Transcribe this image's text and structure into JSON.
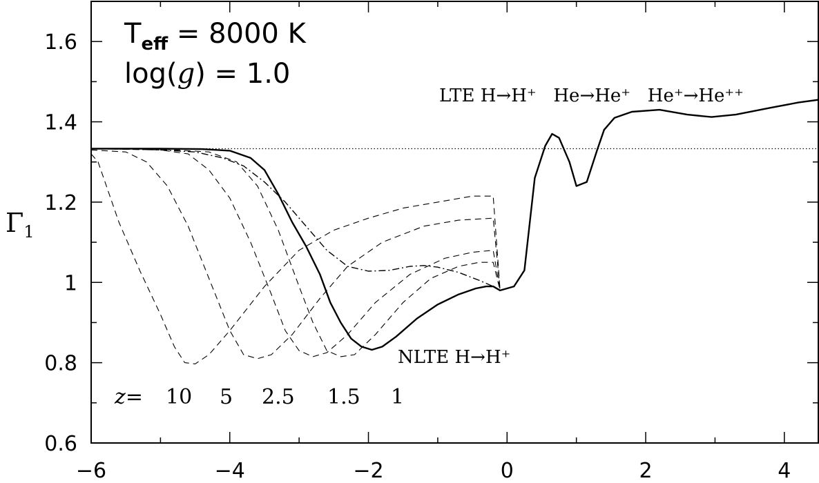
{
  "chart_data": {
    "type": "line",
    "title": "",
    "xlabel": "",
    "ylabel": "Γ",
    "ylabel_sub": "1",
    "xlim": [
      -6,
      4.5
    ],
    "ylim": [
      0.6,
      1.7
    ],
    "x_ticks": [
      -6,
      -4,
      -2,
      0,
      2,
      4
    ],
    "x_tick_labels": [
      "−6",
      "−4",
      "−2",
      "0",
      "2",
      "4"
    ],
    "y_ticks": [
      0.6,
      0.8,
      1.0,
      1.2,
      1.4,
      1.6
    ],
    "y_tick_labels": [
      "0.6",
      "0.8",
      "1",
      "1.2",
      "1.4",
      "1.6"
    ],
    "grid": false,
    "annotations": {
      "teff_label": "T",
      "teff_sub": "eff",
      "teff_value": " = 8000 K",
      "logg_label": "log(",
      "logg_g": "g",
      "logg_value": ") = 1.0",
      "lte_label": "LTE H→H⁺   He→He⁺   He⁺→He⁺⁺",
      "nlte_label": "NLTE H→H⁺",
      "z_label": "z",
      "z_eq": "=",
      "z_values": [
        "10",
        "5",
        "2.5",
        "1.5",
        "1"
      ]
    },
    "reference_line": {
      "y": 1.333,
      "style": "dotted"
    },
    "series": [
      {
        "style": "solid",
        "points": [
          [
            -6,
            1.333
          ],
          [
            -5,
            1.333
          ],
          [
            -4.4,
            1.332
          ],
          [
            -4.0,
            1.328
          ],
          [
            -3.7,
            1.31
          ],
          [
            -3.5,
            1.28
          ],
          [
            -3.3,
            1.22
          ],
          [
            -3.1,
            1.15
          ],
          [
            -2.9,
            1.09
          ],
          [
            -2.7,
            1.02
          ],
          [
            -2.55,
            0.95
          ],
          [
            -2.4,
            0.9
          ],
          [
            -2.25,
            0.86
          ],
          [
            -2.1,
            0.84
          ],
          [
            -1.95,
            0.832
          ],
          [
            -1.8,
            0.84
          ],
          [
            -1.6,
            0.865
          ],
          [
            -1.3,
            0.91
          ],
          [
            -1.0,
            0.945
          ],
          [
            -0.7,
            0.97
          ],
          [
            -0.45,
            0.985
          ],
          [
            -0.3,
            0.99
          ],
          [
            -0.2,
            0.99
          ],
          [
            -0.1,
            0.98
          ],
          [
            0.1,
            0.99
          ],
          [
            0.25,
            1.03
          ],
          [
            0.4,
            1.26
          ],
          [
            0.55,
            1.34
          ],
          [
            0.65,
            1.37
          ],
          [
            0.75,
            1.36
          ],
          [
            0.9,
            1.3
          ],
          [
            1.0,
            1.24
          ],
          [
            1.15,
            1.25
          ],
          [
            1.3,
            1.33
          ],
          [
            1.4,
            1.38
          ],
          [
            1.55,
            1.41
          ],
          [
            1.8,
            1.425
          ],
          [
            2.2,
            1.43
          ],
          [
            2.6,
            1.418
          ],
          [
            2.95,
            1.412
          ],
          [
            3.3,
            1.418
          ],
          [
            3.8,
            1.435
          ],
          [
            4.2,
            1.448
          ],
          [
            4.5,
            1.455
          ]
        ]
      },
      {
        "style": "dashdot",
        "points": [
          [
            -6,
            1.333
          ],
          [
            -5.5,
            1.332
          ],
          [
            -5,
            1.33
          ],
          [
            -4.5,
            1.325
          ],
          [
            -4.1,
            1.31
          ],
          [
            -3.8,
            1.29
          ],
          [
            -3.5,
            1.25
          ],
          [
            -3.2,
            1.2
          ],
          [
            -2.9,
            1.14
          ],
          [
            -2.6,
            1.08
          ],
          [
            -2.3,
            1.04
          ],
          [
            -2.0,
            1.028
          ],
          [
            -1.7,
            1.03
          ],
          [
            -1.4,
            1.04
          ],
          [
            -1.2,
            1.042
          ],
          [
            -1.0,
            1.038
          ],
          [
            -0.7,
            1.025
          ],
          [
            -0.4,
            1.005
          ],
          [
            -0.2,
            0.99
          ],
          [
            -0.1,
            0.98
          ]
        ]
      },
      {
        "style": "dashed",
        "z": "10",
        "points": [
          [
            -6,
            1.32
          ],
          [
            -5.9,
            1.3
          ],
          [
            -5.8,
            1.25
          ],
          [
            -5.6,
            1.15
          ],
          [
            -5.3,
            1.03
          ],
          [
            -5.0,
            0.92
          ],
          [
            -4.8,
            0.84
          ],
          [
            -4.65,
            0.8
          ],
          [
            -4.5,
            0.797
          ],
          [
            -4.3,
            0.82
          ],
          [
            -4.0,
            0.88
          ],
          [
            -3.5,
            0.99
          ],
          [
            -3.0,
            1.08
          ],
          [
            -2.5,
            1.13
          ],
          [
            -2.0,
            1.16
          ],
          [
            -1.5,
            1.185
          ],
          [
            -1.0,
            1.2
          ],
          [
            -0.5,
            1.215
          ],
          [
            -0.2,
            1.215
          ],
          [
            -0.1,
            0.98
          ]
        ]
      },
      {
        "style": "dashed",
        "z": "5",
        "points": [
          [
            -6,
            1.33
          ],
          [
            -5.5,
            1.325
          ],
          [
            -5.2,
            1.3
          ],
          [
            -4.9,
            1.24
          ],
          [
            -4.6,
            1.14
          ],
          [
            -4.3,
            1.01
          ],
          [
            -4.0,
            0.88
          ],
          [
            -3.8,
            0.82
          ],
          [
            -3.6,
            0.81
          ],
          [
            -3.4,
            0.82
          ],
          [
            -3.1,
            0.87
          ],
          [
            -2.7,
            0.96
          ],
          [
            -2.3,
            1.04
          ],
          [
            -1.8,
            1.1
          ],
          [
            -1.2,
            1.14
          ],
          [
            -0.7,
            1.155
          ],
          [
            -0.2,
            1.16
          ],
          [
            -0.1,
            0.98
          ]
        ]
      },
      {
        "style": "dashed",
        "z": "2.5",
        "points": [
          [
            -6,
            1.333
          ],
          [
            -5,
            1.33
          ],
          [
            -4.6,
            1.32
          ],
          [
            -4.3,
            1.28
          ],
          [
            -4.0,
            1.21
          ],
          [
            -3.7,
            1.1
          ],
          [
            -3.4,
            0.97
          ],
          [
            -3.2,
            0.88
          ],
          [
            -3.0,
            0.83
          ],
          [
            -2.8,
            0.815
          ],
          [
            -2.6,
            0.825
          ],
          [
            -2.3,
            0.87
          ],
          [
            -1.9,
            0.95
          ],
          [
            -1.4,
            1.02
          ],
          [
            -0.9,
            1.06
          ],
          [
            -0.5,
            1.075
          ],
          [
            -0.2,
            1.08
          ],
          [
            -0.1,
            0.98
          ]
        ]
      },
      {
        "style": "dashed",
        "z": "1.5",
        "points": [
          [
            -6,
            1.333
          ],
          [
            -5,
            1.332
          ],
          [
            -4.3,
            1.325
          ],
          [
            -3.9,
            1.3
          ],
          [
            -3.6,
            1.24
          ],
          [
            -3.3,
            1.13
          ],
          [
            -3.0,
            0.99
          ],
          [
            -2.8,
            0.9
          ],
          [
            -2.6,
            0.83
          ],
          [
            -2.4,
            0.815
          ],
          [
            -2.2,
            0.82
          ],
          [
            -1.9,
            0.87
          ],
          [
            -1.5,
            0.95
          ],
          [
            -1.1,
            1.01
          ],
          [
            -0.7,
            1.04
          ],
          [
            -0.4,
            1.05
          ],
          [
            -0.2,
            1.05
          ],
          [
            -0.1,
            0.98
          ]
        ]
      }
    ]
  }
}
